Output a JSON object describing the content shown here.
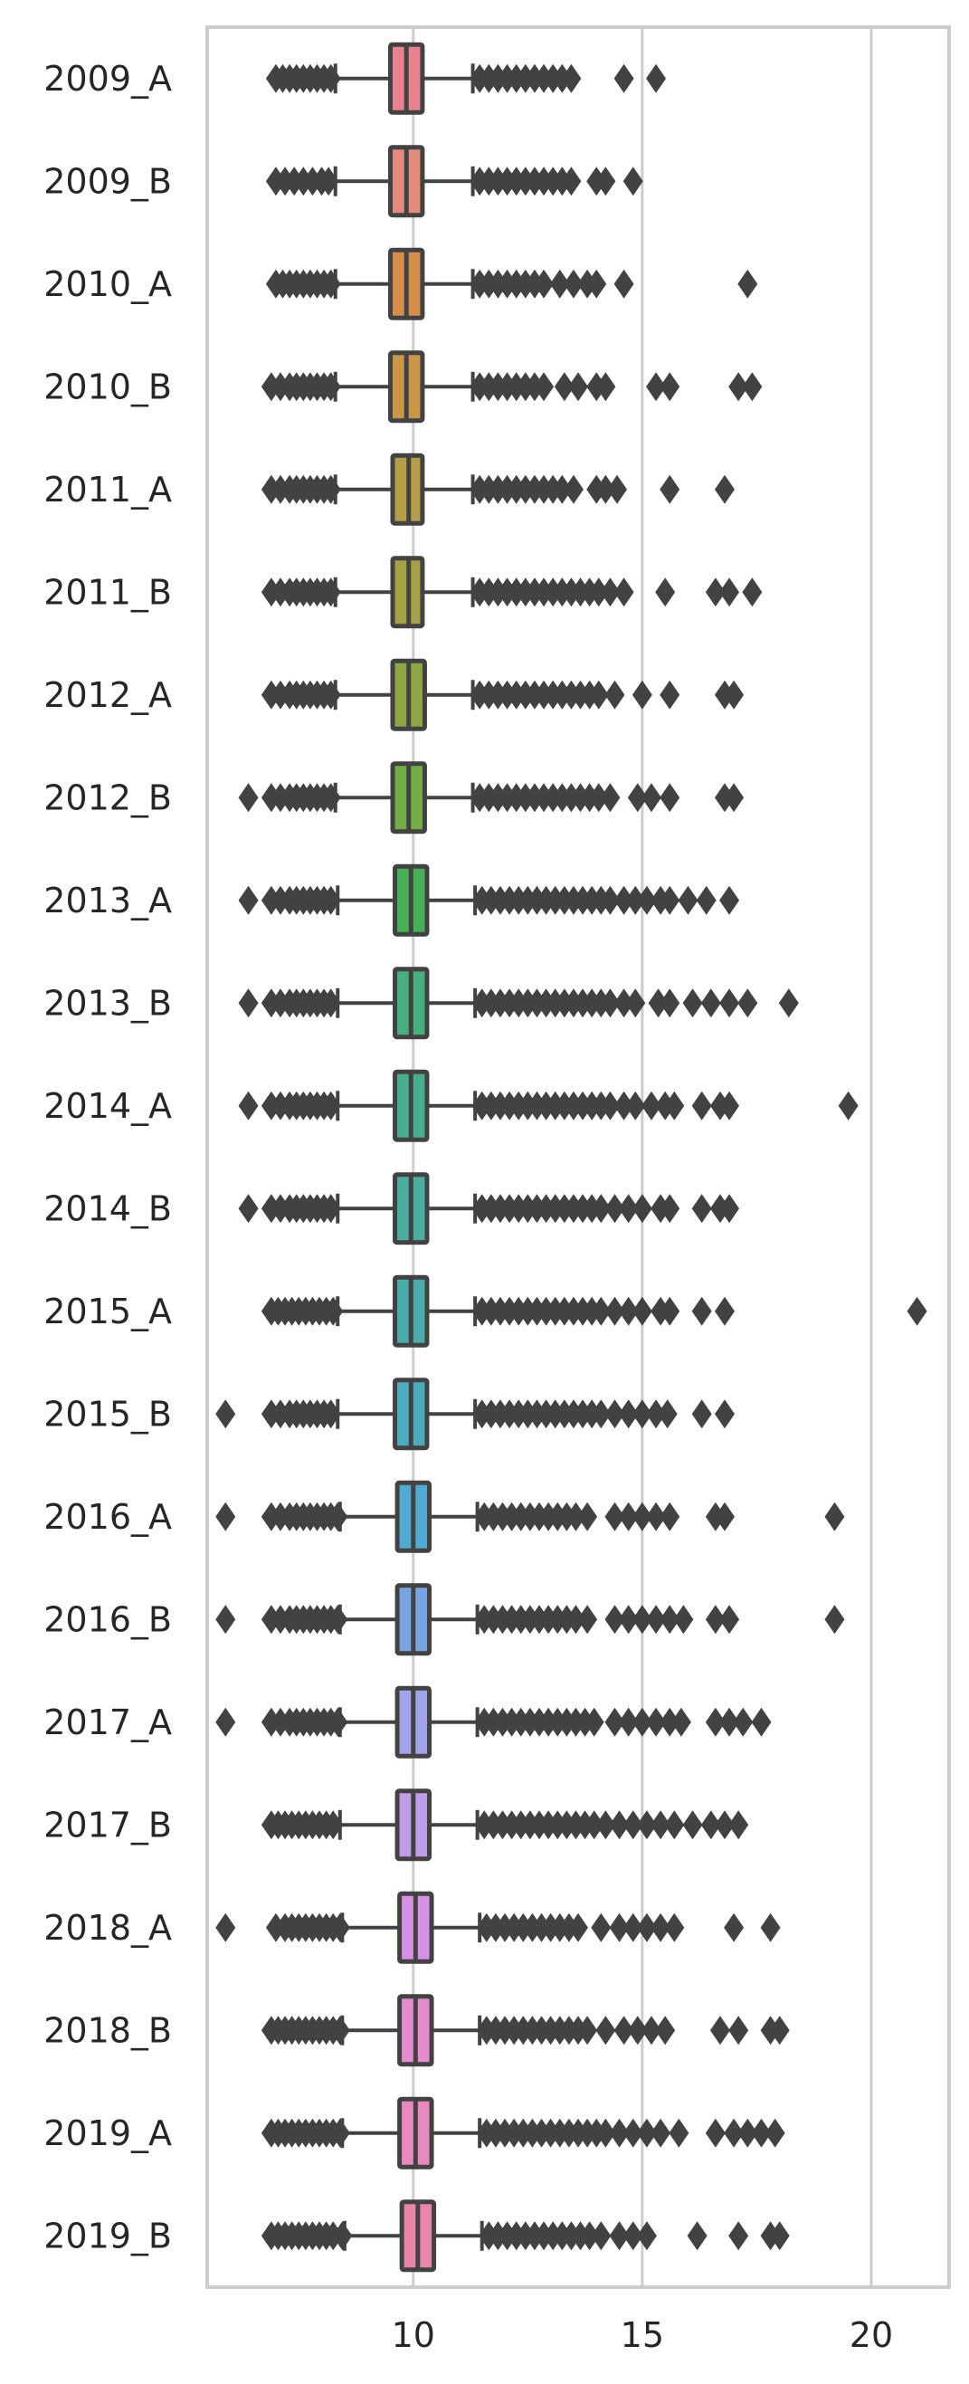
{
  "chart_data": {
    "type": "boxplot",
    "orientation": "horizontal",
    "title": "",
    "xlabel": "",
    "ylabel": "",
    "xlim": [
      5.5,
      21.7
    ],
    "x_ticks": [
      10,
      15,
      20
    ],
    "x_tick_labels": [
      "10",
      "15",
      "20"
    ],
    "grid": "vertical",
    "categories": [
      "2009_A",
      "2009_B",
      "2010_A",
      "2010_B",
      "2011_A",
      "2011_B",
      "2012_A",
      "2012_B",
      "2013_A",
      "2013_B",
      "2014_A",
      "2014_B",
      "2015_A",
      "2015_B",
      "2016_A",
      "2016_B",
      "2017_A",
      "2017_B",
      "2018_A",
      "2018_B",
      "2019_A",
      "2019_B"
    ],
    "colors": [
      "#e8828f",
      "#e58b7e",
      "#d58f4b",
      "#c99746",
      "#b69e48",
      "#a4a245",
      "#8fa644",
      "#74ac46",
      "#47b157",
      "#47b07e",
      "#49ae91",
      "#4aad9e",
      "#4aabab",
      "#4cabbc",
      "#51aad2",
      "#78a5e1",
      "#a2a4e9",
      "#bf9de9",
      "#d591e3",
      "#e48ccf",
      "#e889c0",
      "#e985ab"
    ],
    "line_color": "#424242",
    "boxes": [
      {
        "q1": 9.5,
        "median": 9.85,
        "q3": 10.2,
        "whisker_low": 8.3,
        "whisker_high": 11.3,
        "outliers_low": [
          7.0,
          7.15,
          7.3,
          7.45,
          7.6,
          7.75,
          7.9,
          8.05,
          8.2
        ],
        "outliers_high": [
          11.45,
          11.65,
          11.85,
          12.05,
          12.25,
          12.45,
          12.65,
          12.85,
          13.05,
          13.25,
          13.45,
          14.6,
          15.3
        ]
      },
      {
        "q1": 9.5,
        "median": 9.85,
        "q3": 10.2,
        "whisker_low": 8.3,
        "whisker_high": 11.3,
        "outliers_low": [
          7.0,
          7.2,
          7.4,
          7.6,
          7.8,
          8.0,
          8.15
        ],
        "outliers_high": [
          11.45,
          11.65,
          11.85,
          12.05,
          12.25,
          12.45,
          12.65,
          12.85,
          13.05,
          13.25,
          13.45,
          14.0,
          14.2,
          14.8
        ]
      },
      {
        "q1": 9.5,
        "median": 9.85,
        "q3": 10.2,
        "whisker_low": 8.3,
        "whisker_high": 11.3,
        "outliers_low": [
          7.0,
          7.15,
          7.3,
          7.45,
          7.6,
          7.75,
          7.9,
          8.05,
          8.2
        ],
        "outliers_high": [
          11.45,
          11.65,
          11.85,
          12.05,
          12.25,
          12.45,
          12.65,
          12.85,
          13.2,
          13.5,
          13.8,
          14.0,
          14.6,
          17.3
        ]
      },
      {
        "q1": 9.5,
        "median": 9.85,
        "q3": 10.2,
        "whisker_low": 8.3,
        "whisker_high": 11.3,
        "outliers_low": [
          6.9,
          7.1,
          7.3,
          7.45,
          7.6,
          7.75,
          7.9,
          8.05,
          8.2
        ],
        "outliers_high": [
          11.45,
          11.65,
          11.85,
          12.05,
          12.25,
          12.45,
          12.65,
          12.85,
          13.3,
          13.6,
          14.0,
          14.2,
          15.3,
          15.6,
          17.1,
          17.4
        ]
      },
      {
        "q1": 9.55,
        "median": 9.9,
        "q3": 10.2,
        "whisker_low": 8.3,
        "whisker_high": 11.3,
        "outliers_low": [
          6.9,
          7.1,
          7.3,
          7.45,
          7.6,
          7.75,
          7.9,
          8.05,
          8.2
        ],
        "outliers_high": [
          11.45,
          11.65,
          11.85,
          12.05,
          12.25,
          12.45,
          12.65,
          12.85,
          13.05,
          13.25,
          13.5,
          14.0,
          14.2,
          14.45,
          15.6,
          16.8
        ]
      },
      {
        "q1": 9.55,
        "median": 9.9,
        "q3": 10.2,
        "whisker_low": 8.3,
        "whisker_high": 11.3,
        "outliers_low": [
          6.9,
          7.1,
          7.3,
          7.45,
          7.6,
          7.75,
          7.9,
          8.05,
          8.2
        ],
        "outliers_high": [
          11.45,
          11.65,
          11.85,
          12.05,
          12.25,
          12.45,
          12.65,
          12.85,
          13.05,
          13.25,
          13.45,
          13.65,
          13.85,
          14.05,
          14.3,
          14.6,
          15.5,
          16.6,
          16.9,
          17.4
        ]
      },
      {
        "q1": 9.55,
        "median": 9.9,
        "q3": 10.25,
        "whisker_low": 8.3,
        "whisker_high": 11.3,
        "outliers_low": [
          6.9,
          7.1,
          7.3,
          7.45,
          7.6,
          7.75,
          7.9,
          8.05,
          8.2
        ],
        "outliers_high": [
          11.45,
          11.65,
          11.85,
          12.05,
          12.25,
          12.45,
          12.65,
          12.85,
          13.05,
          13.25,
          13.45,
          13.65,
          13.85,
          14.05,
          14.4,
          15.0,
          15.6,
          16.8,
          17.0
        ]
      },
      {
        "q1": 9.55,
        "median": 9.9,
        "q3": 10.25,
        "whisker_low": 8.3,
        "whisker_high": 11.3,
        "outliers_low": [
          6.4,
          6.9,
          7.1,
          7.3,
          7.45,
          7.6,
          7.75,
          7.9,
          8.05,
          8.2
        ],
        "outliers_high": [
          11.45,
          11.65,
          11.85,
          12.05,
          12.25,
          12.45,
          12.65,
          12.85,
          13.05,
          13.25,
          13.45,
          13.65,
          13.85,
          14.05,
          14.3,
          14.9,
          15.2,
          15.6,
          16.8,
          17.0
        ]
      },
      {
        "q1": 9.6,
        "median": 9.95,
        "q3": 10.3,
        "whisker_low": 8.35,
        "whisker_high": 11.35,
        "outliers_low": [
          6.4,
          6.9,
          7.1,
          7.3,
          7.45,
          7.6,
          7.75,
          7.9,
          8.05,
          8.2
        ],
        "outliers_high": [
          11.5,
          11.7,
          11.9,
          12.1,
          12.3,
          12.5,
          12.7,
          12.9,
          13.1,
          13.3,
          13.5,
          13.7,
          13.9,
          14.1,
          14.3,
          14.6,
          14.85,
          15.1,
          15.4,
          15.6,
          16.0,
          16.4,
          16.9
        ]
      },
      {
        "q1": 9.6,
        "median": 9.95,
        "q3": 10.3,
        "whisker_low": 8.35,
        "whisker_high": 11.35,
        "outliers_low": [
          6.4,
          6.9,
          7.1,
          7.3,
          7.45,
          7.6,
          7.75,
          7.9,
          8.05,
          8.2
        ],
        "outliers_high": [
          11.5,
          11.7,
          11.9,
          12.1,
          12.3,
          12.5,
          12.7,
          12.9,
          13.1,
          13.3,
          13.5,
          13.7,
          13.9,
          14.1,
          14.3,
          14.6,
          14.85,
          15.35,
          15.6,
          16.1,
          16.5,
          16.9,
          17.3,
          18.2
        ]
      },
      {
        "q1": 9.6,
        "median": 9.95,
        "q3": 10.3,
        "whisker_low": 8.35,
        "whisker_high": 11.35,
        "outliers_low": [
          6.4,
          6.9,
          7.1,
          7.3,
          7.45,
          7.6,
          7.75,
          7.9,
          8.05,
          8.2
        ],
        "outliers_high": [
          11.5,
          11.7,
          11.9,
          12.1,
          12.3,
          12.5,
          12.7,
          12.9,
          13.1,
          13.3,
          13.5,
          13.7,
          13.9,
          14.1,
          14.3,
          14.6,
          14.85,
          15.2,
          15.5,
          15.7,
          16.3,
          16.7,
          16.9,
          19.5
        ]
      },
      {
        "q1": 9.6,
        "median": 9.95,
        "q3": 10.3,
        "whisker_low": 8.35,
        "whisker_high": 11.35,
        "outliers_low": [
          6.4,
          6.9,
          7.1,
          7.3,
          7.45,
          7.6,
          7.75,
          7.9,
          8.05,
          8.2
        ],
        "outliers_high": [
          11.5,
          11.7,
          11.9,
          12.1,
          12.3,
          12.5,
          12.7,
          12.9,
          13.1,
          13.3,
          13.5,
          13.7,
          13.9,
          14.1,
          14.4,
          14.7,
          15.0,
          15.4,
          15.6,
          16.3,
          16.7,
          16.9
        ]
      },
      {
        "q1": 9.6,
        "median": 9.95,
        "q3": 10.3,
        "whisker_low": 8.35,
        "whisker_high": 11.35,
        "outliers_low": [
          6.9,
          7.05,
          7.2,
          7.35,
          7.5,
          7.65,
          7.8,
          7.95,
          8.1,
          8.25
        ],
        "outliers_high": [
          11.5,
          11.7,
          11.9,
          12.1,
          12.3,
          12.5,
          12.7,
          12.9,
          13.1,
          13.3,
          13.5,
          13.7,
          13.9,
          14.1,
          14.4,
          14.7,
          15.0,
          15.4,
          15.6,
          16.3,
          16.8,
          21.0
        ]
      },
      {
        "q1": 9.6,
        "median": 9.95,
        "q3": 10.3,
        "whisker_low": 8.35,
        "whisker_high": 11.35,
        "outliers_low": [
          5.9,
          6.9,
          7.1,
          7.3,
          7.45,
          7.6,
          7.75,
          7.9,
          8.05,
          8.2
        ],
        "outliers_high": [
          11.5,
          11.7,
          11.9,
          12.1,
          12.3,
          12.5,
          12.7,
          12.9,
          13.1,
          13.3,
          13.5,
          13.7,
          13.9,
          14.1,
          14.4,
          14.7,
          15.0,
          15.3,
          15.55,
          16.3,
          16.8
        ]
      },
      {
        "q1": 9.65,
        "median": 10.0,
        "q3": 10.35,
        "whisker_low": 8.4,
        "whisker_high": 11.4,
        "outliers_low": [
          5.9,
          6.9,
          7.1,
          7.3,
          7.45,
          7.6,
          7.75,
          7.9,
          8.05,
          8.2,
          8.35
        ],
        "outliers_high": [
          11.55,
          11.75,
          11.95,
          12.15,
          12.35,
          12.55,
          12.75,
          12.95,
          13.15,
          13.35,
          13.55,
          13.8,
          14.4,
          14.7,
          15.0,
          15.3,
          15.6,
          16.6,
          16.8,
          19.2
        ]
      },
      {
        "q1": 9.65,
        "median": 10.0,
        "q3": 10.35,
        "whisker_low": 8.4,
        "whisker_high": 11.4,
        "outliers_low": [
          5.9,
          6.9,
          7.1,
          7.3,
          7.45,
          7.6,
          7.75,
          7.9,
          8.05,
          8.2,
          8.35
        ],
        "outliers_high": [
          11.55,
          11.75,
          11.95,
          12.15,
          12.35,
          12.55,
          12.75,
          12.95,
          13.15,
          13.35,
          13.55,
          13.8,
          14.4,
          14.7,
          15.0,
          15.3,
          15.6,
          15.9,
          16.6,
          16.9,
          19.2
        ]
      },
      {
        "q1": 9.65,
        "median": 10.0,
        "q3": 10.35,
        "whisker_low": 8.4,
        "whisker_high": 11.4,
        "outliers_low": [
          5.9,
          6.9,
          7.1,
          7.3,
          7.45,
          7.6,
          7.75,
          7.9,
          8.05,
          8.2,
          8.35
        ],
        "outliers_high": [
          11.55,
          11.75,
          11.95,
          12.15,
          12.35,
          12.55,
          12.75,
          12.95,
          13.15,
          13.35,
          13.55,
          13.75,
          13.95,
          14.4,
          14.7,
          15.0,
          15.3,
          15.6,
          15.85,
          16.6,
          16.9,
          17.2,
          17.6
        ]
      },
      {
        "q1": 9.65,
        "median": 10.0,
        "q3": 10.35,
        "whisker_low": 8.4,
        "whisker_high": 11.4,
        "outliers_low": [
          6.9,
          7.05,
          7.2,
          7.35,
          7.5,
          7.65,
          7.8,
          7.95,
          8.1,
          8.25
        ],
        "outliers_high": [
          11.55,
          11.75,
          11.95,
          12.15,
          12.35,
          12.55,
          12.75,
          12.95,
          13.15,
          13.35,
          13.55,
          13.75,
          13.95,
          14.2,
          14.5,
          14.8,
          15.1,
          15.4,
          15.7,
          16.1,
          16.5,
          16.8,
          17.1
        ]
      },
      {
        "q1": 9.7,
        "median": 10.05,
        "q3": 10.4,
        "whisker_low": 8.45,
        "whisker_high": 11.45,
        "outliers_low": [
          5.9,
          7.0,
          7.2,
          7.35,
          7.5,
          7.65,
          7.8,
          7.95,
          8.1,
          8.25,
          8.4
        ],
        "outliers_high": [
          11.6,
          11.8,
          12.0,
          12.2,
          12.4,
          12.6,
          12.8,
          13.0,
          13.2,
          13.4,
          13.6,
          14.1,
          14.5,
          14.8,
          15.1,
          15.4,
          15.7,
          17.0,
          17.8
        ]
      },
      {
        "q1": 9.7,
        "median": 10.05,
        "q3": 10.4,
        "whisker_low": 8.45,
        "whisker_high": 11.45,
        "outliers_low": [
          6.9,
          7.05,
          7.2,
          7.35,
          7.5,
          7.65,
          7.8,
          7.95,
          8.1,
          8.25,
          8.4
        ],
        "outliers_high": [
          11.6,
          11.8,
          12.0,
          12.2,
          12.4,
          12.6,
          12.8,
          13.0,
          13.2,
          13.4,
          13.6,
          13.8,
          14.2,
          14.6,
          14.9,
          15.2,
          15.5,
          16.7,
          17.1,
          17.8,
          18.0
        ]
      },
      {
        "q1": 9.7,
        "median": 10.05,
        "q3": 10.4,
        "whisker_low": 8.45,
        "whisker_high": 11.45,
        "outliers_low": [
          6.9,
          7.05,
          7.2,
          7.35,
          7.5,
          7.65,
          7.8,
          7.95,
          8.1,
          8.25,
          8.4
        ],
        "outliers_high": [
          11.6,
          11.8,
          12.0,
          12.2,
          12.4,
          12.6,
          12.8,
          13.0,
          13.2,
          13.4,
          13.6,
          13.8,
          14.0,
          14.2,
          14.5,
          14.8,
          15.1,
          15.4,
          15.8,
          16.6,
          17.0,
          17.3,
          17.6,
          17.9
        ]
      },
      {
        "q1": 9.75,
        "median": 10.1,
        "q3": 10.45,
        "whisker_low": 8.5,
        "whisker_high": 11.5,
        "outliers_low": [
          6.9,
          7.05,
          7.2,
          7.35,
          7.5,
          7.65,
          7.8,
          7.95,
          8.1,
          8.25,
          8.45
        ],
        "outliers_high": [
          11.65,
          11.85,
          12.05,
          12.25,
          12.45,
          12.65,
          12.85,
          13.05,
          13.25,
          13.45,
          13.65,
          13.85,
          14.1,
          14.5,
          14.8,
          15.1,
          16.2,
          17.1,
          17.8,
          18.0
        ]
      }
    ]
  }
}
